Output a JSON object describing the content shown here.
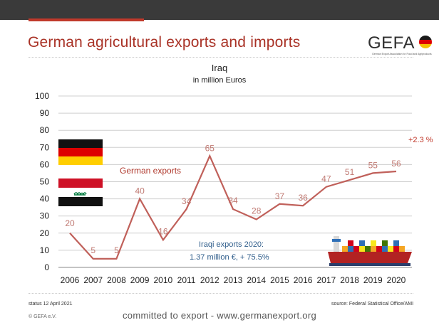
{
  "header": {
    "title": "German agricultural exports and imports",
    "logo_text": "GEFA",
    "logo_subtext": "German Export Association for Food and Agriproducts"
  },
  "chart_data": {
    "type": "line",
    "title": "Iraq",
    "subtitle": "in million Euros",
    "categories": [
      "2006",
      "2007",
      "2008",
      "2009",
      "2010",
      "2011",
      "2012",
      "2013",
      "2014",
      "2015",
      "2016",
      "2017",
      "2018",
      "2019",
      "2020"
    ],
    "series": [
      {
        "name": "German exports",
        "values": [
          20,
          5,
          5,
          40,
          16,
          34,
          65,
          34,
          28,
          37,
          36,
          47,
          51,
          55,
          56
        ]
      }
    ],
    "data_labels": [
      "20",
      "5",
      "5",
      "40",
      "16",
      "34",
      "65",
      "34",
      "28",
      "37",
      "36",
      "47",
      "51",
      "55",
      "56"
    ],
    "ylim": [
      0,
      100
    ],
    "yticks": [
      "0",
      "10",
      "20",
      "30",
      "40",
      "50",
      "60",
      "70",
      "80",
      "90",
      "100"
    ],
    "grid": true,
    "line_color": "#c0605a",
    "annotations": {
      "growth": "+2.3 %",
      "iraqi_line1": "Iraqi exports 2020:",
      "iraqi_line2": "1.37 million €, + 75.5%"
    }
  },
  "footer": {
    "status": "status 12 April 2021",
    "source": "source: Federal Statistical Office/AMI",
    "copyright": "© GEFA e.V.",
    "slogan": "committed to export - www.germanexport.org"
  }
}
